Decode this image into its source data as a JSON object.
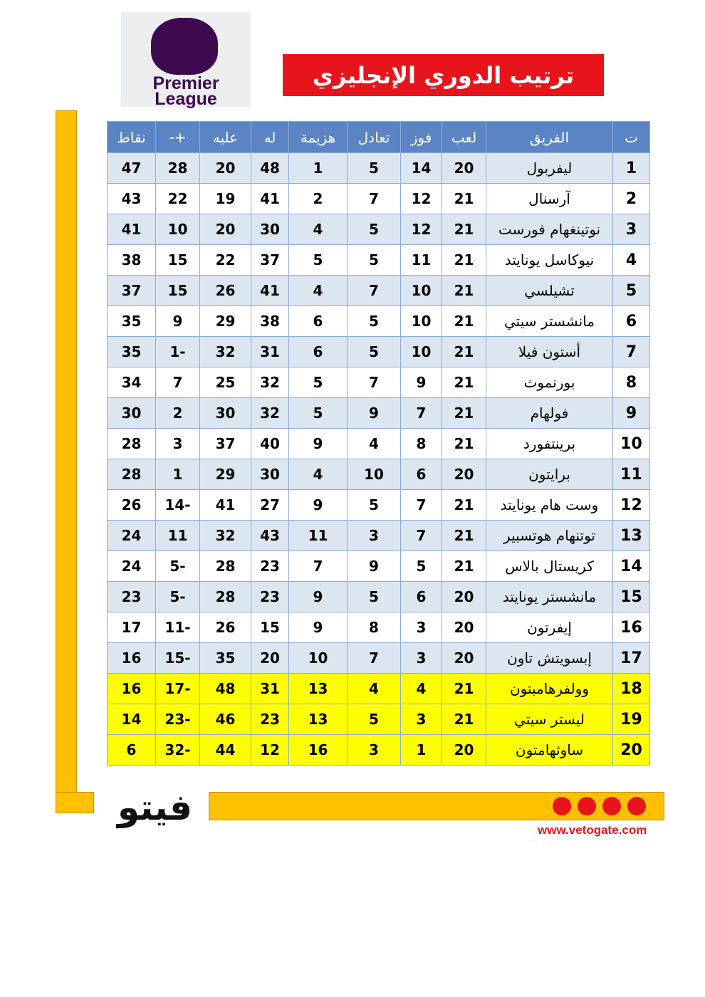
{
  "logo": {
    "line1": "Premier",
    "line2": "League"
  },
  "header": {
    "title": "ترتيب الدوري الإنجليزي"
  },
  "table": {
    "columns": [
      "ت",
      "الفريق",
      "لعب",
      "فوز",
      "تعادل",
      "هزيمة",
      "له",
      "عليه",
      "+-",
      "نقاط"
    ],
    "rows": [
      [
        1,
        "ليفربول",
        20,
        14,
        5,
        1,
        48,
        20,
        28,
        47
      ],
      [
        2,
        "آرسنال",
        21,
        12,
        7,
        2,
        41,
        19,
        22,
        43
      ],
      [
        3,
        "نوتينغهام فورست",
        21,
        12,
        5,
        4,
        30,
        20,
        10,
        41
      ],
      [
        4,
        "نيوكاسل يونايتد",
        21,
        11,
        5,
        5,
        37,
        22,
        15,
        38
      ],
      [
        5,
        "تشيلسي",
        21,
        10,
        7,
        4,
        41,
        26,
        15,
        37
      ],
      [
        6,
        "مانشستر سيتي",
        21,
        10,
        5,
        6,
        38,
        29,
        9,
        35
      ],
      [
        7,
        "أستون فيلا",
        21,
        10,
        5,
        6,
        31,
        32,
        -1,
        35
      ],
      [
        8,
        "بورنموث",
        21,
        9,
        7,
        5,
        32,
        25,
        7,
        34
      ],
      [
        9,
        "فولهام",
        21,
        7,
        9,
        5,
        32,
        30,
        2,
        30
      ],
      [
        10,
        "برينتفورد",
        21,
        8,
        4,
        9,
        40,
        37,
        3,
        28
      ],
      [
        11,
        "برايتون",
        20,
        6,
        10,
        4,
        30,
        29,
        1,
        28
      ],
      [
        12,
        "وست هام يونايتد",
        21,
        7,
        5,
        9,
        27,
        41,
        -14,
        26
      ],
      [
        13,
        "توتنهام هوتسبير",
        21,
        7,
        3,
        11,
        43,
        32,
        11,
        24
      ],
      [
        14,
        "كريستال بالاس",
        21,
        5,
        9,
        7,
        23,
        28,
        -5,
        24
      ],
      [
        15,
        "مانشستر يونايتد",
        20,
        6,
        5,
        9,
        23,
        28,
        -5,
        23
      ],
      [
        16,
        "إيفرتون",
        20,
        3,
        8,
        9,
        15,
        26,
        -11,
        17
      ],
      [
        17,
        "إبسويتش تاون",
        20,
        3,
        7,
        10,
        20,
        35,
        -15,
        16
      ],
      [
        18,
        "وولفرهامبتون",
        21,
        4,
        4,
        13,
        31,
        48,
        -17,
        16
      ],
      [
        19,
        "ليستر سيتي",
        21,
        3,
        5,
        13,
        23,
        46,
        -23,
        14
      ],
      [
        20,
        "ساوثهامتون",
        20,
        1,
        3,
        16,
        12,
        44,
        -32,
        6
      ]
    ]
  },
  "footer": {
    "brand": "فيتو",
    "website": "www.vetogate.com"
  }
}
